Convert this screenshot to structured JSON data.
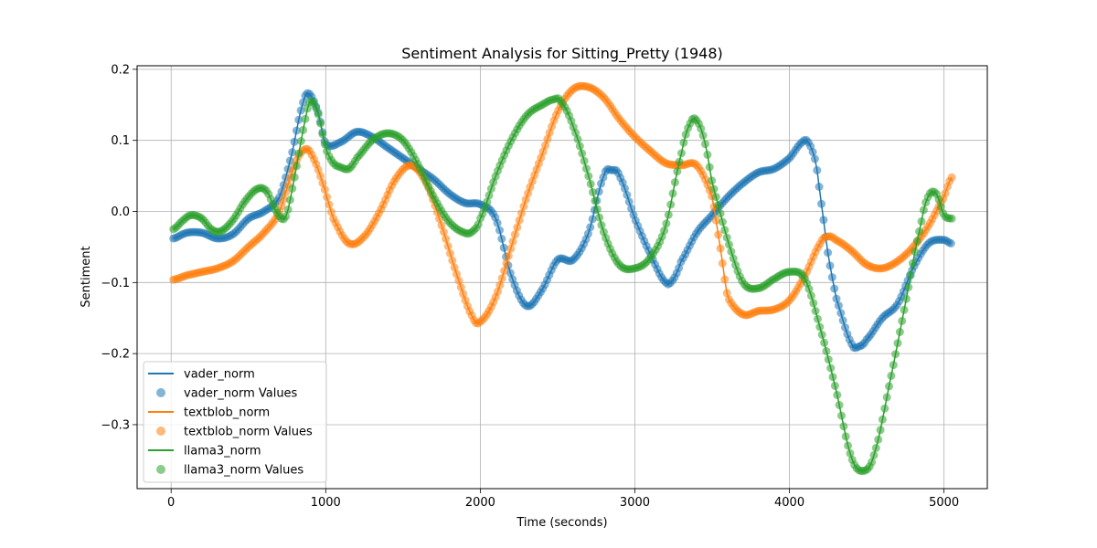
{
  "chart_data": {
    "type": "line",
    "title": "Sentiment Analysis for Sitting_Pretty (1948)",
    "xlabel": "Time (seconds)",
    "ylabel": "Sentiment",
    "xlim": [
      -220,
      5280
    ],
    "ylim": [
      -0.39,
      0.205
    ],
    "x_ticks": [
      0,
      1000,
      2000,
      3000,
      4000,
      5000
    ],
    "x_tick_labels": [
      "0",
      "1000",
      "2000",
      "3000",
      "4000",
      "5000"
    ],
    "y_ticks": [
      -0.3,
      -0.2,
      -0.1,
      0.0,
      0.1,
      0.2
    ],
    "y_tick_labels": [
      "−0.3",
      "−0.2",
      "−0.1",
      "0.0",
      "0.1",
      "0.2"
    ],
    "grid": true,
    "legend_position": "lower-left",
    "legend": [
      {
        "label": "vader_norm",
        "kind": "line",
        "color": "#1f77b4"
      },
      {
        "label": "vader_norm Values",
        "kind": "marker",
        "color": "#1f77b4"
      },
      {
        "label": "textblob_norm",
        "kind": "line",
        "color": "#ff7f0e"
      },
      {
        "label": "textblob_norm Values",
        "kind": "marker",
        "color": "#ff7f0e"
      },
      {
        "label": "llama3_norm",
        "kind": "line",
        "color": "#2ca02c"
      },
      {
        "label": "llama3_norm Values",
        "kind": "marker",
        "color": "#2ca02c"
      }
    ],
    "series": [
      {
        "name": "vader_norm",
        "color": "#1f77b4",
        "x": [
          15,
          100,
          200,
          300,
          400,
          500,
          600,
          700,
          780,
          850,
          890,
          950,
          1000,
          1100,
          1200,
          1300,
          1400,
          1500,
          1600,
          1700,
          1800,
          1900,
          2000,
          2100,
          2200,
          2300,
          2400,
          2500,
          2600,
          2700,
          2800,
          2850,
          2900,
          3000,
          3100,
          3200,
          3250,
          3300,
          3400,
          3500,
          3600,
          3700,
          3800,
          3900,
          4000,
          4080,
          4120,
          4170,
          4200,
          4250,
          4300,
          4400,
          4450,
          4500,
          4600,
          4700,
          4800,
          4900,
          5000,
          5045
        ],
        "y": [
          -0.038,
          -0.03,
          -0.03,
          -0.038,
          -0.032,
          -0.01,
          0.0,
          0.02,
          0.08,
          0.15,
          0.166,
          0.14,
          0.095,
          0.098,
          0.112,
          0.105,
          0.09,
          0.075,
          0.06,
          0.045,
          0.025,
          0.012,
          0.01,
          -0.01,
          -0.09,
          -0.133,
          -0.11,
          -0.068,
          -0.068,
          -0.03,
          0.05,
          0.058,
          0.05,
          -0.01,
          -0.06,
          -0.1,
          -0.095,
          -0.07,
          -0.03,
          -0.005,
          0.02,
          0.04,
          0.055,
          0.06,
          0.075,
          0.097,
          0.098,
          0.07,
          0.02,
          -0.06,
          -0.12,
          -0.185,
          -0.19,
          -0.18,
          -0.15,
          -0.13,
          -0.08,
          -0.045,
          -0.04,
          -0.045
        ]
      },
      {
        "name": "textblob_norm",
        "color": "#ff7f0e",
        "x": [
          15,
          100,
          200,
          300,
          400,
          500,
          600,
          700,
          800,
          870,
          920,
          980,
          1050,
          1150,
          1250,
          1350,
          1450,
          1550,
          1650,
          1750,
          1850,
          1950,
          2000,
          2100,
          2200,
          2300,
          2400,
          2500,
          2600,
          2700,
          2800,
          2900,
          3000,
          3100,
          3200,
          3300,
          3400,
          3500,
          3560,
          3600,
          3700,
          3800,
          3900,
          4000,
          4100,
          4200,
          4250,
          4300,
          4400,
          4500,
          4600,
          4700,
          4800,
          4900,
          5000,
          5050
        ],
        "y": [
          -0.096,
          -0.09,
          -0.085,
          -0.08,
          -0.07,
          -0.05,
          -0.03,
          0.0,
          0.065,
          0.088,
          0.075,
          0.04,
          -0.01,
          -0.045,
          -0.035,
          0.0,
          0.045,
          0.065,
          0.04,
          -0.02,
          -0.09,
          -0.148,
          -0.155,
          -0.12,
          -0.05,
          0.02,
          0.08,
          0.14,
          0.172,
          0.175,
          0.16,
          0.13,
          0.105,
          0.085,
          0.068,
          0.065,
          0.065,
          0.02,
          -0.06,
          -0.12,
          -0.145,
          -0.14,
          -0.138,
          -0.125,
          -0.09,
          -0.045,
          -0.035,
          -0.04,
          -0.055,
          -0.075,
          -0.08,
          -0.07,
          -0.05,
          -0.02,
          0.02,
          0.048
        ]
      },
      {
        "name": "llama3_norm",
        "color": "#2ca02c",
        "x": [
          15,
          80,
          130,
          200,
          260,
          320,
          400,
          480,
          560,
          620,
          680,
          740,
          800,
          860,
          900,
          950,
          1000,
          1050,
          1100,
          1150,
          1200,
          1300,
          1400,
          1500,
          1600,
          1700,
          1800,
          1900,
          1950,
          2000,
          2100,
          2200,
          2300,
          2400,
          2480,
          2520,
          2600,
          2700,
          2800,
          2900,
          3000,
          3100,
          3200,
          3300,
          3360,
          3400,
          3450,
          3500,
          3600,
          3700,
          3800,
          3900,
          4000,
          4100,
          4200,
          4300,
          4400,
          4480,
          4550,
          4650,
          4750,
          4850,
          4900,
          4950,
          5000,
          5050
        ],
        "y": [
          -0.025,
          -0.012,
          -0.005,
          -0.01,
          -0.025,
          -0.028,
          -0.012,
          0.015,
          0.032,
          0.028,
          0.0,
          -0.008,
          0.05,
          0.12,
          0.155,
          0.138,
          0.09,
          0.068,
          0.062,
          0.06,
          0.075,
          0.1,
          0.11,
          0.1,
          0.065,
          0.02,
          -0.015,
          -0.03,
          -0.028,
          -0.01,
          0.05,
          0.1,
          0.135,
          0.15,
          0.158,
          0.155,
          0.12,
          0.05,
          -0.03,
          -0.075,
          -0.08,
          -0.065,
          -0.02,
          0.08,
          0.125,
          0.128,
          0.1,
          0.04,
          -0.04,
          -0.1,
          -0.108,
          -0.095,
          -0.085,
          -0.095,
          -0.165,
          -0.25,
          -0.345,
          -0.365,
          -0.34,
          -0.24,
          -0.13,
          -0.02,
          0.022,
          0.025,
          -0.005,
          -0.01
        ]
      }
    ]
  }
}
